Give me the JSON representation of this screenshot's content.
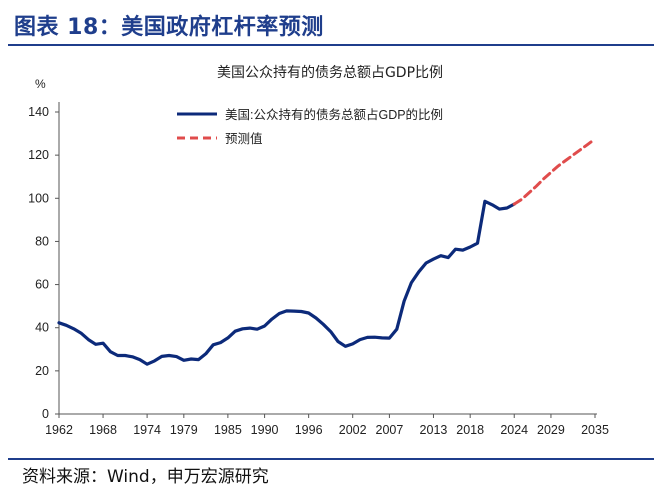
{
  "figure": {
    "title": "图表 18：美国政府杠杆率预测",
    "source": "资料来源：Wind，申万宏源研究"
  },
  "colors": {
    "accent": "#1f3e8c",
    "series_actual": "#0c2a7a",
    "series_forecast": "#e04c4c"
  },
  "chart_data": {
    "type": "line",
    "title": "美国公众持有的债务总额占GDP比例",
    "ylabel": "%",
    "xlabel": "",
    "xlim": [
      1962,
      2035
    ],
    "ylim": [
      0,
      140
    ],
    "x_ticks": [
      "1962",
      "1968",
      "1974",
      "1979",
      "1985",
      "1990",
      "1996",
      "2002",
      "2007",
      "2013",
      "2018",
      "2024",
      "2029",
      "2035"
    ],
    "y_ticks": [
      "0",
      "20",
      "40",
      "60",
      "80",
      "100",
      "120",
      "140"
    ],
    "grid": false,
    "legend_position": "top-left",
    "series": [
      {
        "name": "美国:公众持有的债务总额占GDP的比例",
        "style": "solid",
        "x": [
          1962,
          1963,
          1964,
          1965,
          1966,
          1967,
          1968,
          1969,
          1970,
          1971,
          1972,
          1973,
          1974,
          1975,
          1976,
          1977,
          1978,
          1979,
          1980,
          1981,
          1982,
          1983,
          1984,
          1985,
          1986,
          1987,
          1988,
          1989,
          1990,
          1991,
          1992,
          1993,
          1994,
          1995,
          1996,
          1997,
          1998,
          1999,
          2000,
          2001,
          2002,
          2003,
          2004,
          2005,
          2006,
          2007,
          2008,
          2009,
          2010,
          2011,
          2012,
          2013,
          2014,
          2015,
          2016,
          2017,
          2018,
          2019,
          2020,
          2021,
          2022,
          2023,
          2024
        ],
        "y": [
          42.3,
          41.1,
          39.5,
          37.5,
          34.5,
          32.3,
          32.8,
          28.9,
          27.1,
          27.1,
          26.5,
          25.2,
          23.1,
          24.6,
          26.7,
          27.1,
          26.6,
          24.9,
          25.5,
          25.2,
          27.9,
          32.1,
          33.1,
          35.3,
          38.4,
          39.5,
          39.8,
          39.3,
          40.8,
          44.0,
          46.6,
          47.8,
          47.7,
          47.5,
          46.8,
          44.5,
          41.6,
          38.2,
          33.6,
          31.4,
          32.5,
          34.5,
          35.5,
          35.6,
          35.3,
          35.2,
          39.3,
          52.3,
          60.9,
          65.9,
          70.0,
          71.8,
          73.4,
          72.5,
          76.4,
          76.0,
          77.4,
          79.2,
          98.6,
          97.0,
          95.0,
          95.5,
          97.3
        ]
      },
      {
        "name": "预测值",
        "style": "dashed",
        "x": [
          2024,
          2025,
          2026,
          2027,
          2028,
          2029,
          2030,
          2031,
          2032,
          2033,
          2034,
          2035
        ],
        "y": [
          97.3,
          99.5,
          102.5,
          105.6,
          109.0,
          112.0,
          115.0,
          117.5,
          120.0,
          122.5,
          125.0,
          127.5
        ]
      }
    ]
  }
}
